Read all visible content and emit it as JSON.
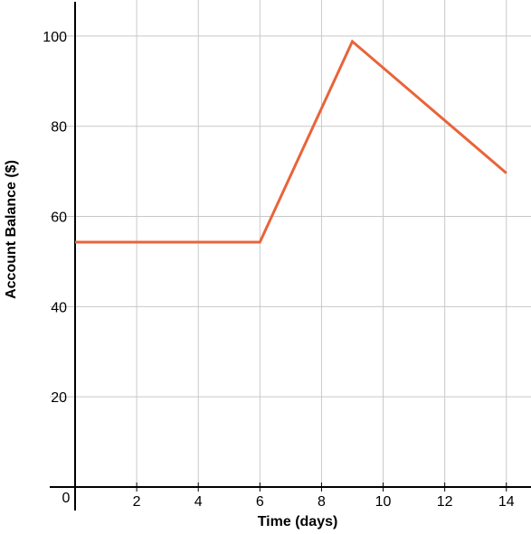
{
  "chart_data": {
    "type": "line",
    "xlabel": "Time (days)",
    "ylabel": "Account Balance ($)",
    "xlim": [
      0,
      14.8
    ],
    "ylim": [
      0,
      108
    ],
    "grid": true,
    "x_ticks": [
      2,
      4,
      6,
      8,
      10,
      12,
      14
    ],
    "x_tick_labels": [
      "2",
      "4",
      "6",
      "8",
      "10",
      "12",
      "14"
    ],
    "y_ticks": [
      20,
      40,
      60,
      80,
      100
    ],
    "y_tick_labels": [
      "20",
      "40",
      "60",
      "80",
      "100"
    ],
    "origin_label": "0",
    "series": [
      {
        "color": "#e8643a",
        "points": [
          [
            0,
            54.3
          ],
          [
            6,
            54.3
          ],
          [
            9,
            98.8
          ],
          [
            14,
            69.6
          ]
        ]
      }
    ]
  }
}
